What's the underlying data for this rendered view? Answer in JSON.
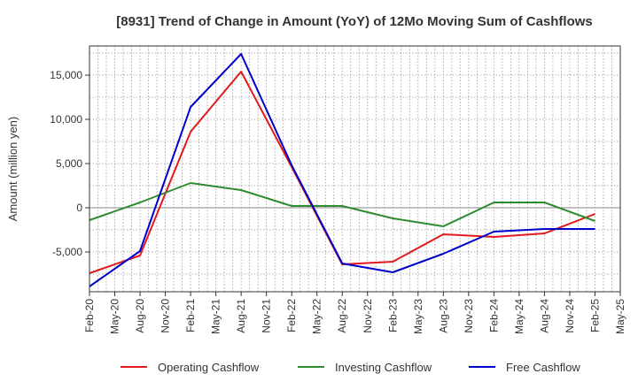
{
  "chart_data": {
    "type": "line",
    "title": "[8931]  Trend of Change in Amount (YoY) of 12Mo Moving Sum of Cashflows",
    "xlabel": "",
    "ylabel": "Amount (million yen)",
    "ylim": [
      -9500,
      18300
    ],
    "yticks": [
      -5000,
      0,
      5000,
      10000,
      15000
    ],
    "ytick_labels": [
      "-5,000",
      "0",
      "5,000",
      "10,000",
      "15,000"
    ],
    "x_ticks": [
      "Feb-20",
      "May-20",
      "Aug-20",
      "Nov-20",
      "Feb-21",
      "May-21",
      "Aug-21",
      "Nov-21",
      "Feb-22",
      "May-22",
      "Aug-22",
      "Nov-22",
      "Feb-23",
      "May-23",
      "Aug-23",
      "Nov-23",
      "Feb-24",
      "May-24",
      "Aug-24",
      "Nov-24",
      "Feb-25",
      "May-25"
    ],
    "grid": true,
    "legend_position": "bottom",
    "series": [
      {
        "name": "Operating Cashflow",
        "color": "#e31a1c",
        "x": [
          "Feb-20",
          "Aug-20",
          "Feb-21",
          "Aug-21",
          "Feb-22",
          "Aug-22",
          "Feb-23",
          "Aug-23",
          "Feb-24",
          "Aug-24",
          "Feb-25"
        ],
        "values": [
          -7400,
          -5400,
          8600,
          15400,
          4600,
          -6400,
          -6100,
          -3000,
          -3300,
          -2900,
          -700
        ]
      },
      {
        "name": "Investing Cashflow",
        "color": "#2e8b2e",
        "x": [
          "Feb-20",
          "Aug-20",
          "Feb-21",
          "Aug-21",
          "Feb-22",
          "Aug-22",
          "Feb-23",
          "Aug-23",
          "Feb-24",
          "Aug-24",
          "Feb-25"
        ],
        "values": [
          -1400,
          600,
          2800,
          2000,
          200,
          200,
          -1200,
          -2100,
          600,
          600,
          -1500
        ]
      },
      {
        "name": "Free Cashflow",
        "color": "#0000cc",
        "x": [
          "Feb-20",
          "Aug-20",
          "Feb-21",
          "Aug-21",
          "Feb-22",
          "Aug-22",
          "Feb-23",
          "Aug-23",
          "Feb-24",
          "Aug-24",
          "Feb-25"
        ],
        "values": [
          -8900,
          -4900,
          11400,
          17400,
          4800,
          -6300,
          -7300,
          -5200,
          -2700,
          -2400,
          -2400
        ]
      }
    ]
  }
}
